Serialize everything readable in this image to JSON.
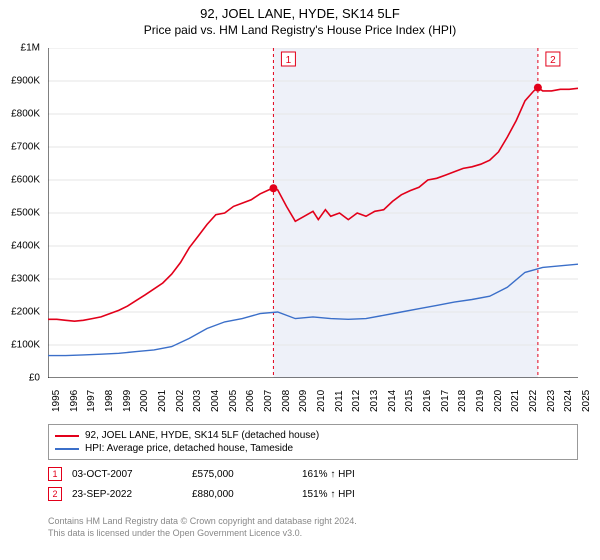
{
  "title": "92, JOEL LANE, HYDE, SK14 5LF",
  "subtitle": "Price paid vs. HM Land Registry's House Price Index (HPI)",
  "chart": {
    "type": "line",
    "background_color": "#ffffff",
    "grid_color": "#e6e6e6",
    "axis_color": "#000000",
    "shaded_region": {
      "x_start": 2007.76,
      "x_end": 2022.73,
      "fill": "#eef1f9"
    },
    "xlim": [
      1995,
      2025
    ],
    "x_ticks": [
      1995,
      1996,
      1997,
      1998,
      1999,
      2000,
      2001,
      2002,
      2003,
      2004,
      2005,
      2006,
      2007,
      2008,
      2009,
      2010,
      2011,
      2012,
      2013,
      2014,
      2015,
      2016,
      2017,
      2018,
      2019,
      2020,
      2021,
      2022,
      2023,
      2024,
      2025
    ],
    "ylim": [
      0,
      1000000
    ],
    "y_ticks": [
      0,
      100000,
      200000,
      300000,
      400000,
      500000,
      600000,
      700000,
      800000,
      900000,
      1000000
    ],
    "y_tick_labels": [
      "£0",
      "£100K",
      "£200K",
      "£300K",
      "£400K",
      "£500K",
      "£600K",
      "£700K",
      "£800K",
      "£900K",
      "£1M"
    ],
    "series": [
      {
        "name": "92, JOEL LANE, HYDE, SK14 5LF (detached house)",
        "color": "#e2001a",
        "line_width": 1.6,
        "points": [
          [
            1995,
            178000
          ],
          [
            1995.5,
            178000
          ],
          [
            1996,
            175000
          ],
          [
            1996.5,
            172000
          ],
          [
            1997,
            175000
          ],
          [
            1997.5,
            180000
          ],
          [
            1998,
            185000
          ],
          [
            1998.5,
            195000
          ],
          [
            1999,
            205000
          ],
          [
            1999.5,
            218000
          ],
          [
            2000,
            235000
          ],
          [
            2000.5,
            252000
          ],
          [
            2001,
            270000
          ],
          [
            2001.5,
            288000
          ],
          [
            2002,
            315000
          ],
          [
            2002.5,
            350000
          ],
          [
            2003,
            395000
          ],
          [
            2003.5,
            430000
          ],
          [
            2004,
            465000
          ],
          [
            2004.5,
            495000
          ],
          [
            2005,
            500000
          ],
          [
            2005.5,
            520000
          ],
          [
            2006,
            530000
          ],
          [
            2006.5,
            540000
          ],
          [
            2007,
            558000
          ],
          [
            2007.5,
            570000
          ],
          [
            2007.76,
            575000
          ],
          [
            2008,
            570000
          ],
          [
            2008.5,
            520000
          ],
          [
            2009,
            475000
          ],
          [
            2009.5,
            490000
          ],
          [
            2010,
            505000
          ],
          [
            2010.3,
            480000
          ],
          [
            2010.7,
            510000
          ],
          [
            2011,
            490000
          ],
          [
            2011.5,
            500000
          ],
          [
            2012,
            480000
          ],
          [
            2012.5,
            500000
          ],
          [
            2013,
            490000
          ],
          [
            2013.5,
            505000
          ],
          [
            2014,
            510000
          ],
          [
            2014.5,
            535000
          ],
          [
            2015,
            555000
          ],
          [
            2015.5,
            568000
          ],
          [
            2016,
            578000
          ],
          [
            2016.5,
            600000
          ],
          [
            2017,
            605000
          ],
          [
            2017.5,
            615000
          ],
          [
            2018,
            625000
          ],
          [
            2018.5,
            635000
          ],
          [
            2019,
            640000
          ],
          [
            2019.5,
            648000
          ],
          [
            2020,
            660000
          ],
          [
            2020.5,
            685000
          ],
          [
            2021,
            730000
          ],
          [
            2021.5,
            780000
          ],
          [
            2022,
            840000
          ],
          [
            2022.5,
            870000
          ],
          [
            2022.73,
            880000
          ],
          [
            2023,
            870000
          ],
          [
            2023.5,
            870000
          ],
          [
            2024,
            875000
          ],
          [
            2024.5,
            875000
          ],
          [
            2025,
            878000
          ]
        ]
      },
      {
        "name": "HPI: Average price, detached house, Tameside",
        "color": "#3b6fc9",
        "line_width": 1.4,
        "points": [
          [
            1995,
            68000
          ],
          [
            1996,
            68000
          ],
          [
            1997,
            70000
          ],
          [
            1998,
            72000
          ],
          [
            1999,
            75000
          ],
          [
            2000,
            80000
          ],
          [
            2001,
            85000
          ],
          [
            2002,
            95000
          ],
          [
            2003,
            120000
          ],
          [
            2004,
            150000
          ],
          [
            2005,
            170000
          ],
          [
            2006,
            180000
          ],
          [
            2007,
            195000
          ],
          [
            2008,
            200000
          ],
          [
            2009,
            180000
          ],
          [
            2010,
            185000
          ],
          [
            2011,
            180000
          ],
          [
            2012,
            178000
          ],
          [
            2013,
            180000
          ],
          [
            2014,
            190000
          ],
          [
            2015,
            200000
          ],
          [
            2016,
            210000
          ],
          [
            2017,
            220000
          ],
          [
            2018,
            230000
          ],
          [
            2019,
            238000
          ],
          [
            2020,
            248000
          ],
          [
            2021,
            275000
          ],
          [
            2022,
            320000
          ],
          [
            2023,
            335000
          ],
          [
            2024,
            340000
          ],
          [
            2025,
            345000
          ]
        ]
      }
    ],
    "markers": [
      {
        "id": "1",
        "x": 2007.76,
        "y": 575000,
        "dot_color": "#e2001a",
        "box_border": "#e2001a",
        "line_dash": "3,3"
      },
      {
        "id": "2",
        "x": 2022.73,
        "y": 880000,
        "dot_color": "#e2001a",
        "box_border": "#e2001a",
        "line_dash": "3,3"
      }
    ]
  },
  "legend": {
    "items": [
      {
        "label": "92, JOEL LANE, HYDE, SK14 5LF (detached house)",
        "color": "#e2001a"
      },
      {
        "label": "HPI: Average price, detached house, Tameside",
        "color": "#3b6fc9"
      }
    ]
  },
  "sales": [
    {
      "marker": "1",
      "marker_color": "#e2001a",
      "date": "03-OCT-2007",
      "price": "£575,000",
      "pct": "161% ↑ HPI"
    },
    {
      "marker": "2",
      "marker_color": "#e2001a",
      "date": "23-SEP-2022",
      "price": "£880,000",
      "pct": "151% ↑ HPI"
    }
  ],
  "footer": {
    "line1": "Contains HM Land Registry data © Crown copyright and database right 2024.",
    "line2": "This data is licensed under the Open Government Licence v3.0."
  }
}
